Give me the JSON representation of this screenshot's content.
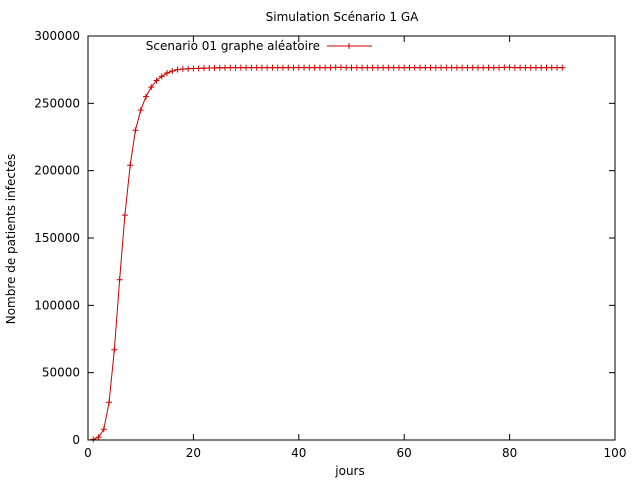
{
  "chart_data": {
    "type": "line",
    "title": "Simulation Scénario 1 GA",
    "xlabel": "jours",
    "ylabel": "Nombre de patients infectés",
    "xlim": [
      0,
      100
    ],
    "ylim": [
      0,
      300000
    ],
    "x_ticks": [
      0,
      20,
      40,
      60,
      80,
      100
    ],
    "y_ticks": [
      0,
      50000,
      100000,
      150000,
      200000,
      250000,
      300000
    ],
    "grid": false,
    "legend_position": "top-left",
    "series": [
      {
        "name": "Scenario 01 graphe aléatoire",
        "color": "#cc0000",
        "marker": "plus",
        "x": [
          1,
          2,
          3,
          4,
          5,
          6,
          7,
          8,
          9,
          10,
          11,
          12,
          13,
          14,
          15,
          16,
          17,
          18,
          19,
          20,
          21,
          22,
          23,
          24,
          25,
          26,
          27,
          28,
          29,
          30,
          31,
          32,
          33,
          34,
          35,
          36,
          37,
          38,
          39,
          40,
          41,
          42,
          43,
          44,
          45,
          46,
          47,
          48,
          49,
          50,
          51,
          52,
          53,
          54,
          55,
          56,
          57,
          58,
          59,
          60,
          61,
          62,
          63,
          64,
          65,
          66,
          67,
          68,
          69,
          70,
          71,
          72,
          73,
          74,
          75,
          76,
          77,
          78,
          79,
          80,
          81,
          82,
          83,
          84,
          85,
          86,
          87,
          88,
          89,
          90
        ],
        "y": [
          500,
          2000,
          8000,
          28000,
          67000,
          119000,
          167000,
          204000,
          230000,
          245000,
          255000,
          262000,
          267000,
          270000,
          272500,
          274000,
          275000,
          275500,
          275700,
          275900,
          276000,
          276100,
          276200,
          276300,
          276400,
          276400,
          276500,
          276500,
          276500,
          276500,
          276500,
          276500,
          276500,
          276500,
          276500,
          276500,
          276500,
          276500,
          276500,
          276600,
          276500,
          276500,
          276500,
          276500,
          276500,
          276500,
          276700,
          276700,
          276500,
          276500,
          276500,
          276500,
          276500,
          276500,
          276500,
          276500,
          276500,
          276500,
          276500,
          276500,
          276500,
          276500,
          276500,
          276500,
          276500,
          276500,
          276500,
          276500,
          276500,
          276500,
          276500,
          276500,
          276500,
          276500,
          276500,
          276500,
          276500,
          276500,
          276700,
          276700,
          276500,
          276500,
          276500,
          276500,
          276500,
          276500,
          276500,
          276500,
          276500,
          276500
        ]
      }
    ]
  }
}
